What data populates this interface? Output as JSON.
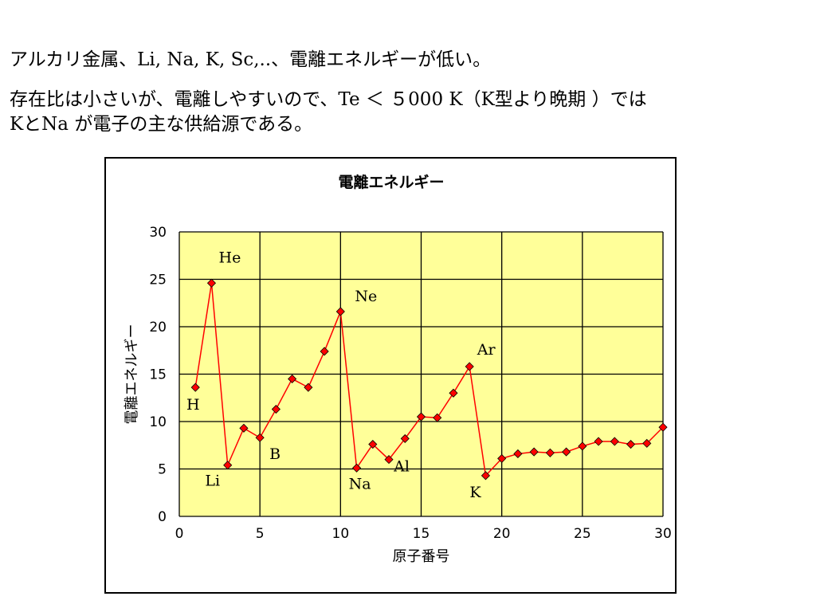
{
  "text": {
    "line1": "アルカリ金属、Li, Na, K, Sc,..、電離エネルギーが低い。",
    "line2": "存在比は小さいが、電離しやすいので、Te ＜ ５000 K（K型より晩期 ）では",
    "line3": "KとNa が電子の主な供給源である。"
  },
  "colors": {
    "plot_bg": "#ffff99",
    "line": "#ff0000",
    "marker": "#ff0000",
    "grid": "#000000"
  },
  "chart_data": {
    "type": "line",
    "title": "電離エネルギー",
    "xlabel": "原子番号",
    "ylabel": "電離エネルギー",
    "xlim": [
      0,
      30
    ],
    "ylim": [
      0,
      30
    ],
    "xticks": [
      0,
      5,
      10,
      15,
      20,
      25,
      30
    ],
    "yticks": [
      0,
      5,
      10,
      15,
      20,
      25,
      30
    ],
    "grid": true,
    "marker": "diamond",
    "x": [
      1,
      2,
      3,
      4,
      5,
      6,
      7,
      8,
      9,
      10,
      11,
      12,
      13,
      14,
      15,
      16,
      17,
      18,
      19,
      20,
      21,
      22,
      23,
      24,
      25,
      26,
      27,
      28,
      29,
      30
    ],
    "values": [
      13.6,
      24.6,
      5.4,
      9.3,
      8.3,
      11.3,
      14.5,
      13.6,
      17.4,
      21.6,
      5.1,
      7.6,
      6.0,
      8.2,
      10.5,
      10.4,
      13.0,
      15.8,
      4.3,
      6.1,
      6.6,
      6.8,
      6.7,
      6.8,
      7.4,
      7.9,
      7.9,
      7.6,
      7.7,
      9.4
    ],
    "annotations": [
      {
        "text": "H",
        "x": 1
      },
      {
        "text": "He",
        "x": 2
      },
      {
        "text": "Li",
        "x": 3
      },
      {
        "text": "B",
        "x": 5
      },
      {
        "text": "Ne",
        "x": 10
      },
      {
        "text": "Na",
        "x": 11
      },
      {
        "text": "Al",
        "x": 13
      },
      {
        "text": "Ar",
        "x": 18
      },
      {
        "text": "K",
        "x": 19
      }
    ]
  }
}
